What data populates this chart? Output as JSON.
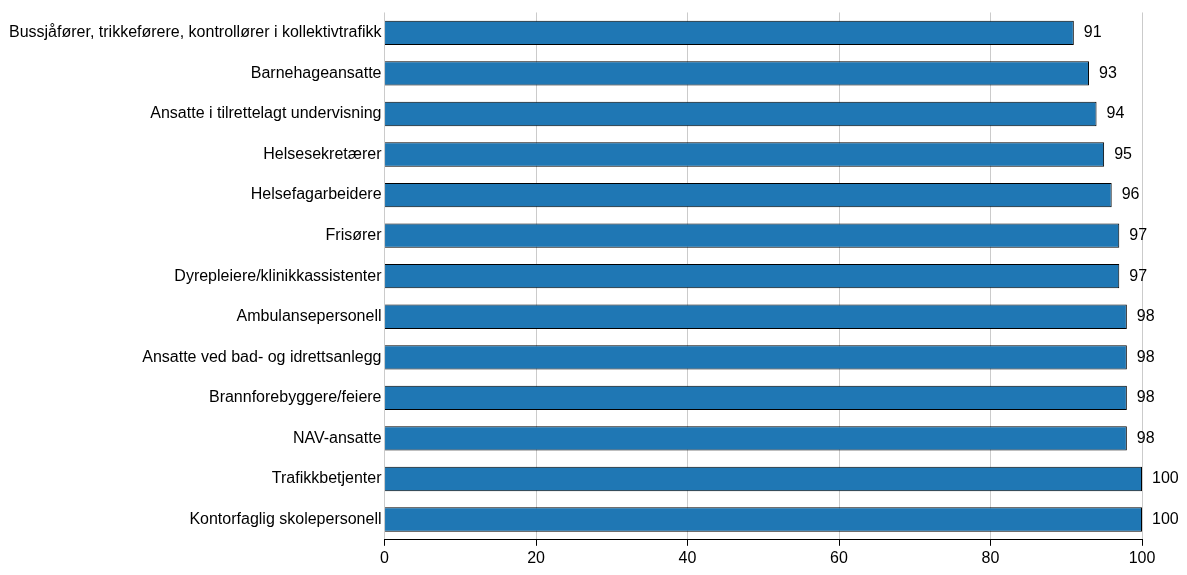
{
  "chart_data": {
    "type": "bar",
    "orientation": "horizontal",
    "categories": [
      "Bussjåfører, trikkeførere, kontrollører i kollektivtrafikk",
      "Barnehageansatte",
      "Ansatte i tilrettelagt undervisning",
      "Helsesekretærer",
      "Helsefagarbeidere",
      "Frisører",
      "Dyrepleiere/klinikkassistenter",
      "Ambulansepersonell",
      "Ansatte ved bad- og idrettsanlegg",
      "Brannforebyggere/feiere",
      "NAV-ansatte",
      "Trafikkbetjenter",
      "Kontorfaglig skolepersonell"
    ],
    "values": [
      91,
      93,
      94,
      95,
      96,
      97,
      97,
      98,
      98,
      98,
      98,
      100,
      100
    ],
    "color": "#1f77b4",
    "xlim": [
      0,
      100
    ],
    "xticks": [
      0,
      20,
      40,
      60,
      80,
      100
    ],
    "grid": "x",
    "data_labels": true,
    "legend": false
  }
}
